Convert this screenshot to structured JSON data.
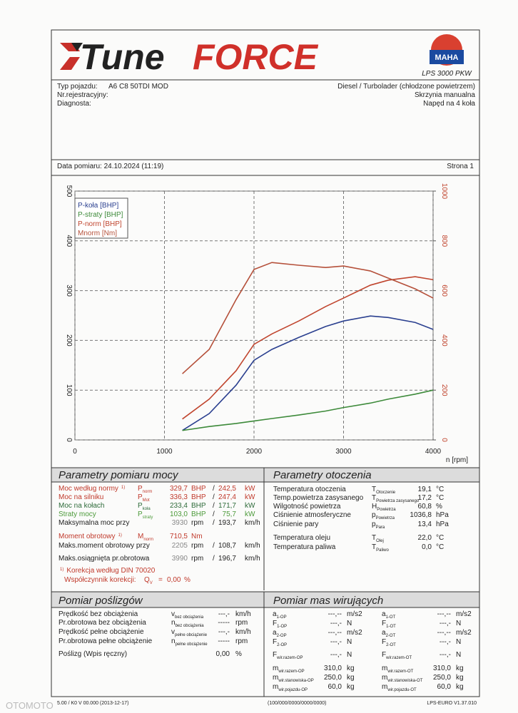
{
  "header": {
    "logo_a": "Tune",
    "logo_b": "FORCE",
    "badge": "MAHA",
    "model": "LPS 3000 PKW"
  },
  "vehicle": {
    "left": [
      {
        "label": "Typ pojazdu:",
        "value": "A6 C8 50TDI MOD"
      },
      {
        "label": "Nr.rejestracyjny:"
      },
      {
        "label": "Diagnosta:"
      }
    ],
    "right": [
      "Diesel / Turbolader (chłodzone powietrzem)",
      "Skrzynia manualna",
      "Napęd na 4 koła"
    ]
  },
  "date_row": {
    "date": "Data pomiaru: 24.10.2024 (11:19)",
    "page": "Strona 1"
  },
  "chart_data": {
    "type": "line",
    "x": [
      1200,
      1500,
      1800,
      2000,
      2200,
      2500,
      2800,
      3000,
      3300,
      3500,
      3800,
      4000
    ],
    "xlim": [
      0,
      4000
    ],
    "xticks": [
      0,
      1000,
      2000,
      3000,
      4000
    ],
    "xlabel": "n [rpm]",
    "ylim": [
      0,
      500
    ],
    "yticks": [
      0,
      100,
      200,
      300,
      400,
      500
    ],
    "y2lim": [
      0,
      1000
    ],
    "y2ticks": [
      0,
      200,
      400,
      600,
      800,
      1000
    ],
    "grid": true,
    "legend": "upper left",
    "series": [
      {
        "name": "P-koła [BHP]",
        "color": "#2a3f8f",
        "values": [
          19,
          53,
          110,
          160,
          182,
          206,
          228,
          239,
          249,
          246,
          236,
          222
        ]
      },
      {
        "name": "P-straty [BHP]",
        "color": "#3d8a3a",
        "values": [
          19,
          27,
          33,
          38,
          43,
          50,
          58,
          65,
          74,
          82,
          92,
          100
        ]
      },
      {
        "name": "P-norm [BHP]",
        "color": "#c0452e",
        "values": [
          42,
          82,
          139,
          192,
          213,
          239,
          268,
          285,
          311,
          321,
          328,
          322
        ]
      },
      {
        "name": "Mnorm [Nm]",
        "color": "#b5503a",
        "axis": "y2",
        "values": [
          266,
          364,
          564,
          685,
          713,
          702,
          693,
          699,
          679,
          650,
          607,
          570
        ]
      }
    ]
  },
  "power": {
    "title": "Parametry pomiaru mocy",
    "rows": [
      {
        "label": "Moc według normy",
        "note": "1)",
        "sym": "P",
        "sub": "norm",
        "value": "329,7",
        "unit": "BHP",
        "sep": "/",
        "value2": "242,5",
        "unit2": "kW",
        "color": "#c0392b"
      },
      {
        "label": "Moc na silniku",
        "sym": "P",
        "sub": "Mot",
        "value": "336,3",
        "unit": "BHP",
        "sep": "/",
        "value2": "247,4",
        "unit2": "kW",
        "color": "#c0392b"
      },
      {
        "label": "Moc na kołach",
        "sym": "P",
        "sub": "koła",
        "value": "233,4",
        "unit": "BHP",
        "sep": "/",
        "value2": "171,7",
        "unit2": "kW",
        "color": "#2e6b3a"
      },
      {
        "label": "Straty mocy",
        "sym": "P",
        "sub": "straty",
        "value": "103,0",
        "unit": "BHP",
        "sep": "/",
        "value2": "75,7",
        "unit2": "kW",
        "color": "#4c9a3a"
      },
      {
        "label": "Maksymalna moc przy",
        "value": "3930",
        "unit": "rpm",
        "sep": "/",
        "value2": "193,7",
        "unit2": "km/h",
        "color": "#222222"
      },
      {
        "label": "Moment obrotowy",
        "note": "1)",
        "sym": "M",
        "sub": "norm",
        "value": "710,5",
        "unit": "Nm",
        "color": "#c0392b"
      },
      {
        "label": "Maks.moment obrotowy przy",
        "value": "2205",
        "unit": "rpm",
        "sep": "/",
        "value2": "108,7",
        "unit2": "km/h",
        "color": "#222222"
      },
      {
        "label": "Maks.osiągnięta pr.obrotowa",
        "value": "3990",
        "unit": "rpm",
        "sep": "/",
        "value2": "196,7",
        "unit2": "km/h",
        "color": "#222222"
      }
    ],
    "footnote": {
      "ref": "1)",
      "text": "Korekcja według DIN 70020",
      "factor_label": "Współczynnik korekcji:",
      "sym": "Q",
      "sub": "V",
      "eq": "=",
      "value": "0,00",
      "unit": "%"
    }
  },
  "ambient": {
    "title": "Parametry otoczenia",
    "rows": [
      {
        "label": "Temperatura otoczenia",
        "sym": "T",
        "sub": "Otoczenie",
        "value": "19,1",
        "unit": "°C"
      },
      {
        "label": "Temp.powietrza zasysanego",
        "sym": "T",
        "sub": "Powietrza zasysanego",
        "value": "17,2",
        "unit": "°C"
      },
      {
        "label": "Wilgotność powietrza",
        "sym": "H",
        "sub": "Powietrza",
        "value": "60,8",
        "unit": "%"
      },
      {
        "label": "Ciśnienie atmosferyczne",
        "sym": "p",
        "sub": "Powietrza",
        "value": "1036,8",
        "unit": "hPa"
      },
      {
        "label": "Ciśnienie pary",
        "sym": "p",
        "sub": "Para",
        "value": "13,4",
        "unit": "hPa"
      },
      {
        "label": "Temperatura oleju",
        "sym": "T",
        "sub": "Olej",
        "value": "22,0",
        "unit": "°C"
      },
      {
        "label": "Temperatura paliwa",
        "sym": "T",
        "sub": "Paliwo",
        "value": "0,0",
        "unit": "°C"
      }
    ]
  },
  "slip": {
    "title": "Pomiar poślizgów",
    "rows": [
      {
        "label": "Prędkość bez obciążenia",
        "sym": "v",
        "sub": "bez obciążenia",
        "value": "---,-",
        "unit": "km/h"
      },
      {
        "label": "Pr.obrotowa bez obciążenia",
        "sym": "n",
        "sub": "bez obciążenia",
        "value": "-----",
        "unit": "rpm"
      },
      {
        "label": "Prędkość pełne obciążenie",
        "sym": "v",
        "sub": "pełne obciążenie",
        "value": "---,-",
        "unit": "km/h"
      },
      {
        "label": "Pr.obrotowa pełne obciążenie",
        "sym": "n",
        "sub": "pełne obciążenie",
        "value": "-----",
        "unit": "rpm"
      },
      {
        "label": "Poślizg (Wpis ręczny)",
        "value": "0,00",
        "unit": "%"
      }
    ]
  },
  "masses": {
    "title": "Pomiar mas wirujących",
    "rows": [
      [
        {
          "sym": "a",
          "sub": "1-OP",
          "value": "---,--",
          "unit": "m/s2"
        },
        {
          "sym": "a",
          "sub": "1-OT",
          "value": "---,--",
          "unit": "m/s2"
        }
      ],
      [
        {
          "sym": "F",
          "sub": "1-OP",
          "value": "---,-",
          "unit": "N"
        },
        {
          "sym": "F",
          "sub": "1-OT",
          "value": "---,-",
          "unit": "N"
        }
      ],
      [
        {
          "sym": "a",
          "sub": "2-OP",
          "value": "---,--",
          "unit": "m/s2"
        },
        {
          "sym": "a",
          "sub": "2-OT",
          "value": "---,--",
          "unit": "m/s2"
        }
      ],
      [
        {
          "sym": "F",
          "sub": "2-OP",
          "value": "---,-",
          "unit": "N"
        },
        {
          "sym": "F",
          "sub": "2-OT",
          "value": "---,-",
          "unit": "N"
        }
      ],
      [
        {
          "sym": "F",
          "sub": "wir.razem-OP",
          "value": "---,-",
          "unit": "N"
        },
        {
          "sym": "F",
          "sub": "wir.razem-OT",
          "value": "---,-",
          "unit": "N"
        }
      ],
      [
        {
          "sym": "m",
          "sub": "wir.razem-OP",
          "value": "310,0",
          "unit": "kg"
        },
        {
          "sym": "m",
          "sub": "wir.razem-OT",
          "value": "310,0",
          "unit": "kg"
        }
      ],
      [
        {
          "sym": "m",
          "sub": "wir.stanowiska-OP",
          "value": "250,0",
          "unit": "kg"
        },
        {
          "sym": "m",
          "sub": "wir.stanowiska-OT",
          "value": "250,0",
          "unit": "kg"
        }
      ],
      [
        {
          "sym": "m",
          "sub": "wir.pojazdu-OP",
          "value": "60,0",
          "unit": "kg"
        },
        {
          "sym": "m",
          "sub": "wir.pojazdu-OT",
          "value": "60,0",
          "unit": "kg"
        }
      ]
    ]
  },
  "footer": {
    "left": "5.00 / K0 V 00.000 (2013-12-17)",
    "middle": "(100/000/0000/0000/0000)",
    "right": "LPS-EURO V1.37.010",
    "watermark": "OTOMOTO"
  }
}
